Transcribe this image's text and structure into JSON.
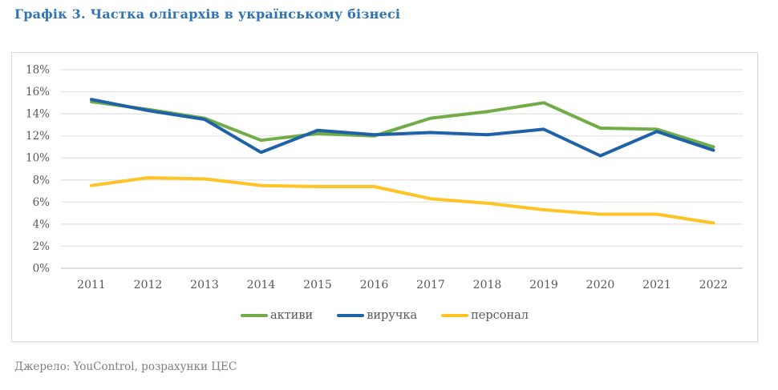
{
  "header": {
    "title": "Графік 3. Частка олігархів в українському бізнесі"
  },
  "source_note": "Джерело: YouControl, розрахунки ЦЕС",
  "colors": {
    "title": "#2E74B5",
    "axis_text": "#595959",
    "gridline": "#E2E2E2",
    "zero_line": "#CCCCCC",
    "box_border": "#D9D9D9",
    "series_assets": "#70AD47",
    "series_revenue": "#2062A8",
    "series_personnel": "#FFC324"
  },
  "chart_data": {
    "type": "line",
    "title": "Графік 3. Частка олігархів в українському бізнесі",
    "x": [
      "2011",
      "2012",
      "2013",
      "2014",
      "2015",
      "2016",
      "2017",
      "2018",
      "2019",
      "2020",
      "2021",
      "2022"
    ],
    "series": [
      {
        "name": "активи",
        "key": "assets",
        "color": "#70AD47",
        "values": [
          15.1,
          14.4,
          13.6,
          11.6,
          12.2,
          12.0,
          13.6,
          14.2,
          15.0,
          12.7,
          12.6,
          11.0
        ]
      },
      {
        "name": "виручка",
        "key": "revenue",
        "color": "#2062A8",
        "values": [
          15.3,
          14.3,
          13.5,
          10.5,
          12.5,
          12.1,
          12.3,
          12.1,
          12.6,
          10.2,
          12.4,
          10.7
        ]
      },
      {
        "name": "персонал",
        "key": "personnel",
        "color": "#FFC324",
        "values": [
          7.5,
          8.2,
          8.1,
          7.5,
          7.4,
          7.4,
          6.3,
          5.9,
          5.3,
          4.9,
          4.9,
          4.1
        ]
      }
    ],
    "xlabel": "",
    "ylabel": "",
    "ylim": [
      0,
      18
    ],
    "ytick_step": 2,
    "ytick_suffix": "%",
    "grid": "horizontal",
    "legend_position": "bottom-center"
  }
}
